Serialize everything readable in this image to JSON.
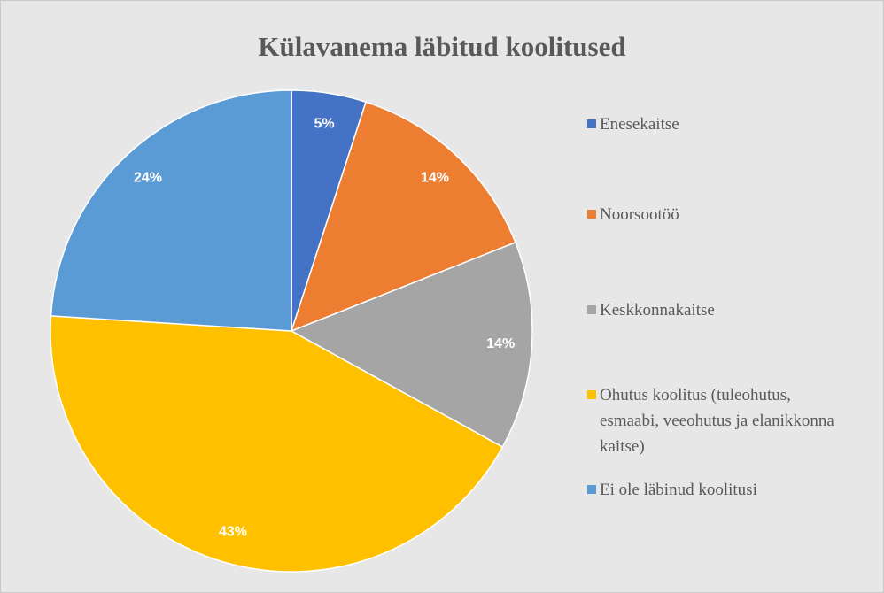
{
  "chart_data": {
    "type": "pie",
    "title": "Külavanema läbitud koolitused",
    "categories": [
      "Enesekaitse",
      "Noorsootöö",
      "Keskkonnakaitse",
      "Ohutus koolitus (tuleohutus, esmaabi, veeohutus ja elanikkonna kaitse)",
      "Ei ole läbinud koolitusi"
    ],
    "values": [
      5,
      14,
      14,
      43,
      24
    ],
    "value_labels": [
      "5%",
      "14%",
      "14%",
      "43%",
      "24%"
    ],
    "colors": [
      "#4472c4",
      "#ed7d31",
      "#a5a5a5",
      "#ffc000",
      "#5b9bd5"
    ],
    "legend": "right"
  }
}
